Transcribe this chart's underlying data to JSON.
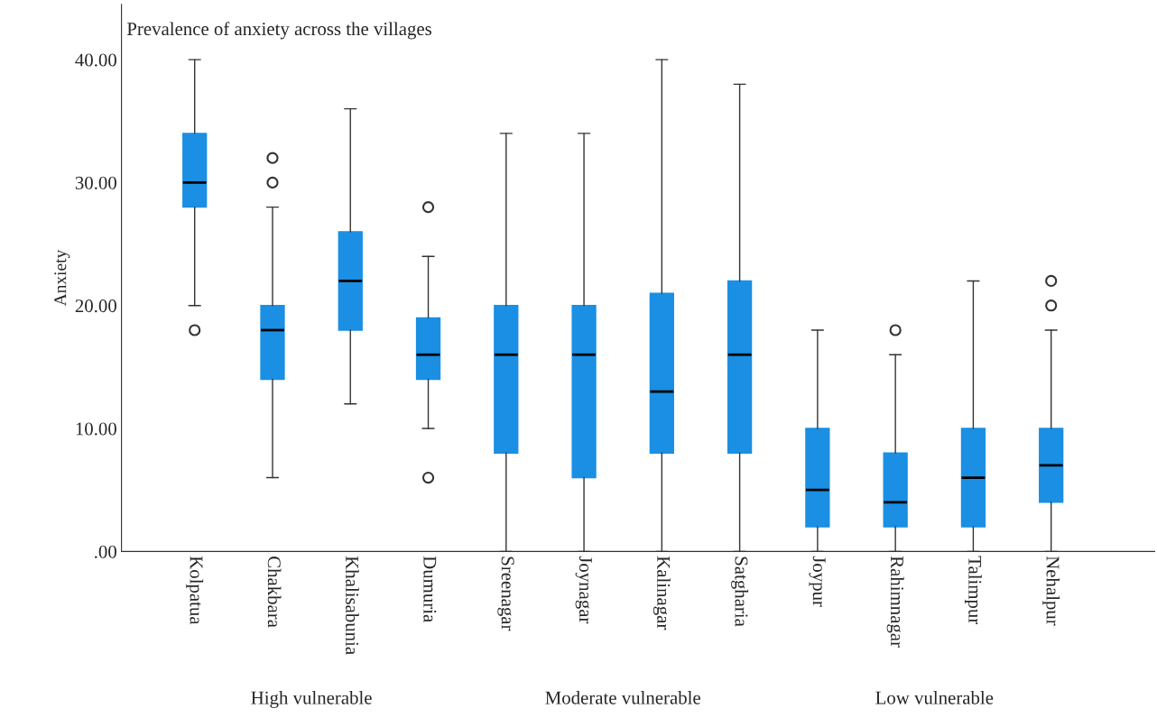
{
  "chart_data": {
    "type": "box",
    "title": "Prevalence of anxiety across the villages",
    "ylabel": "Anxiety",
    "categories": [
      "Kolpatua",
      "Chakbara",
      "Khalisabunia",
      "Dumuria",
      "Sreenagar",
      "Joynagar",
      "Kalinagar",
      "Satgharia",
      "Joypur",
      "Rahimnagar",
      "Talimpur",
      "Nehalpur"
    ],
    "boxes": [
      {
        "low": 20,
        "q1": 28,
        "median": 30,
        "q3": 34,
        "high": 40,
        "outliers": [
          18
        ]
      },
      {
        "low": 6,
        "q1": 14,
        "median": 18,
        "q3": 20,
        "high": 28,
        "outliers": [
          30,
          32
        ]
      },
      {
        "low": 12,
        "q1": 18,
        "median": 22,
        "q3": 26,
        "high": 36
      },
      {
        "low": 10,
        "q1": 14,
        "median": 16,
        "q3": 19,
        "high": 24,
        "outliers": [
          6,
          28
        ]
      },
      {
        "low": 0,
        "q1": 8,
        "median": 16,
        "q3": 20,
        "high": 34
      },
      {
        "low": 0,
        "q1": 6,
        "median": 16,
        "q3": 20,
        "high": 34
      },
      {
        "low": 0,
        "q1": 8,
        "median": 13,
        "q3": 21,
        "high": 40
      },
      {
        "low": 0,
        "q1": 8,
        "median": 16,
        "q3": 22,
        "high": 38
      },
      {
        "low": 0,
        "q1": 2,
        "median": 5,
        "q3": 10,
        "high": 18
      },
      {
        "low": 0,
        "q1": 2,
        "median": 4,
        "q3": 8,
        "high": 16,
        "outliers": [
          18
        ]
      },
      {
        "low": 0,
        "q1": 2,
        "median": 6,
        "q3": 10,
        "high": 22
      },
      {
        "low": 0,
        "q1": 4,
        "median": 7,
        "q3": 10,
        "high": 18,
        "outliers": [
          20,
          22
        ]
      }
    ],
    "color": "#1a8fe3",
    "ylim": [
      0,
      44.5
    ],
    "yticks": [
      {
        "value": 0,
        "label": ".00"
      },
      {
        "value": 10,
        "label": "10.00"
      },
      {
        "value": 20,
        "label": "20.00"
      },
      {
        "value": 30,
        "label": "30.00"
      },
      {
        "value": 40,
        "label": "40.00"
      }
    ],
    "grid": false,
    "annotations": [
      "High vulnerable",
      "Moderate vulnerable",
      "Low vulnerable"
    ]
  }
}
